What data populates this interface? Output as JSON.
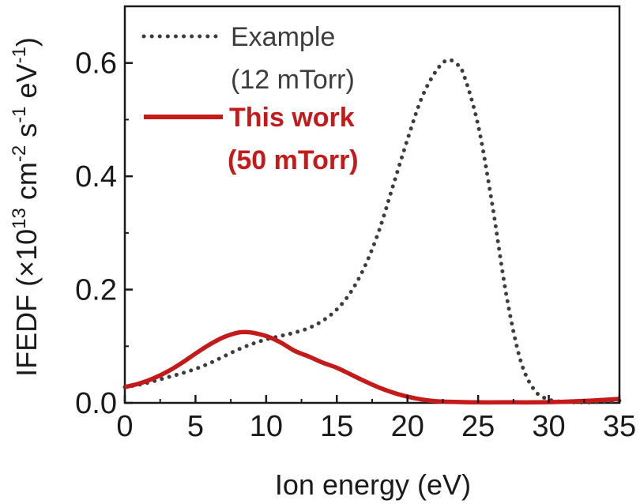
{
  "chart_data": {
    "type": "line",
    "xlabel": "Ion energy (eV)",
    "ylabel": {
      "main": "IFEDF (×10",
      "exp13": "13",
      "cm": " cm",
      "expm2": "-2",
      "s": " s",
      "expm1a": "-1",
      "ev": " eV",
      "expm1b": "-1",
      "close": ")"
    },
    "xlim": [
      0,
      35
    ],
    "ylim": [
      0,
      0.7
    ],
    "x_ticks": [
      0,
      5,
      10,
      15,
      20,
      25,
      30,
      35
    ],
    "x_tick_labels": [
      "0",
      "5",
      "10",
      "15",
      "20",
      "25",
      "30",
      "35"
    ],
    "y_ticks": [
      0.0,
      0.2,
      0.4,
      0.6
    ],
    "y_tick_labels": [
      "0.0",
      "0.2",
      "0.4",
      "0.6"
    ],
    "series": [
      {
        "name_line1": "Example",
        "name_line2": "(12 mTorr)",
        "style": "dotted",
        "color": "#3d3d3d",
        "x": [
          0,
          1,
          2,
          3,
          4,
          5,
          6,
          7,
          8,
          9,
          10,
          11,
          12,
          13,
          14,
          15,
          16,
          17,
          18,
          19,
          20,
          21,
          22,
          22.8,
          23.5,
          24,
          25,
          26,
          27,
          28,
          29,
          30,
          31,
          32,
          33,
          34,
          35
        ],
        "values": [
          0.028,
          0.032,
          0.038,
          0.045,
          0.052,
          0.06,
          0.07,
          0.082,
          0.094,
          0.104,
          0.112,
          0.118,
          0.124,
          0.132,
          0.145,
          0.165,
          0.196,
          0.242,
          0.305,
          0.385,
          0.465,
          0.538,
          0.585,
          0.605,
          0.598,
          0.578,
          0.49,
          0.35,
          0.19,
          0.075,
          0.022,
          0.006,
          0.002,
          0.001,
          0.001,
          0.002,
          0.004
        ]
      },
      {
        "name_line1": "This work",
        "name_line2": "(50 mTorr)",
        "style": "solid",
        "color": "#c41a1a",
        "x": [
          0,
          1,
          2,
          3,
          4,
          5,
          6,
          7,
          8,
          8.5,
          9,
          10,
          11,
          12,
          13,
          14,
          15,
          16,
          17,
          18,
          19,
          20,
          21,
          22,
          23,
          25,
          27,
          29,
          31,
          33,
          35
        ],
        "values": [
          0.028,
          0.034,
          0.043,
          0.055,
          0.07,
          0.087,
          0.103,
          0.116,
          0.124,
          0.125,
          0.124,
          0.118,
          0.107,
          0.092,
          0.082,
          0.071,
          0.062,
          0.05,
          0.038,
          0.027,
          0.018,
          0.011,
          0.006,
          0.003,
          0.002,
          0.001,
          0.001,
          0.001,
          0.002,
          0.004,
          0.007
        ]
      }
    ]
  },
  "colors": {
    "example": "#3d3d3d",
    "this_work": "#c41a1a",
    "axis": "#1a1a1a"
  }
}
